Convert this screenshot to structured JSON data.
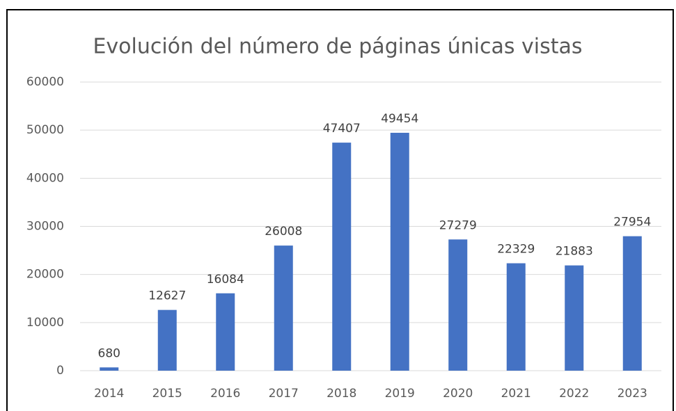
{
  "chart_data": {
    "type": "bar",
    "title": "Evolución del número de páginas únicas vistas",
    "categories": [
      "2014",
      "2015",
      "2016",
      "2017",
      "2018",
      "2019",
      "2020",
      "2021",
      "2022",
      "2023"
    ],
    "values": [
      680,
      12627,
      16084,
      26008,
      47407,
      49454,
      27279,
      22329,
      21883,
      27954
    ],
    "color": "#4472c4",
    "ylim": [
      0,
      60000
    ],
    "yticks": [
      0,
      10000,
      20000,
      30000,
      40000,
      50000,
      60000
    ],
    "grid": true
  }
}
